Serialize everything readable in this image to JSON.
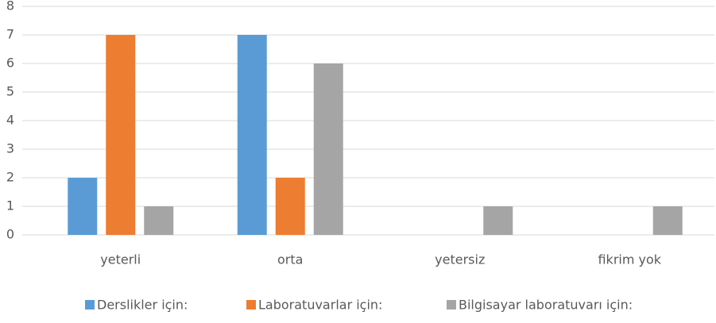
{
  "chart_data": {
    "type": "bar",
    "categories": [
      "yeterli",
      "orta",
      "yetersiz",
      "fikrim yok"
    ],
    "series": [
      {
        "name": "Derslikler için:",
        "color": "#5b9bd5",
        "values": [
          2,
          7,
          0,
          0
        ]
      },
      {
        "name": "Laboratuvarlar için:",
        "color": "#ed7d31",
        "values": [
          7,
          2,
          0,
          0
        ]
      },
      {
        "name": "Bilgisayar laboratuvarı için:",
        "color": "#a5a5a5",
        "values": [
          1,
          6,
          1,
          1
        ]
      }
    ],
    "ylim": [
      0,
      8
    ],
    "yticks": [
      0,
      1,
      2,
      3,
      4,
      5,
      6,
      7,
      8
    ],
    "grid": true,
    "legend": "bottom"
  }
}
